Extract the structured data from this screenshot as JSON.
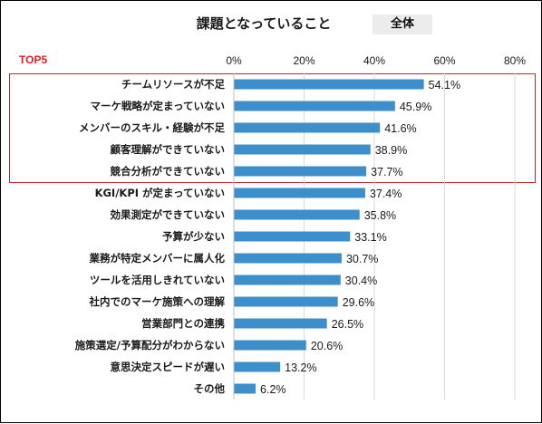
{
  "header": {
    "title": "課題となっていること",
    "badge": "全体",
    "top_label": "TOP5"
  },
  "colors": {
    "bar": "#3d8fcc",
    "grid": "#d9d9d9",
    "highlight_border": "#c0282d",
    "top_label": "#e11d1d"
  },
  "chart_data": {
    "type": "bar",
    "orientation": "horizontal",
    "title": "課題となっていること",
    "xlim": [
      0,
      80
    ],
    "x_ticks": [
      "0%",
      "20%",
      "40%",
      "60%",
      "80%"
    ],
    "x_tick_values": [
      0,
      20,
      40,
      60,
      80
    ],
    "grid": true,
    "highlight_top_n": 5,
    "categories": [
      "チームリソースが不足",
      "マーケ戦略が定まっていない",
      "メンバーのスキル・経験が不足",
      "顧客理解ができていない",
      "競合分析ができていない",
      "KGI/KPI が定まっていない",
      "効果測定ができていない",
      "予算が少ない",
      "業務が特定メンバーに属人化",
      "ツールを活用しきれていない",
      "社内でのマーケ施策への理解",
      "営業部門との連携",
      "施策選定/予算配分がわからない",
      "意思決定スピードが遅い",
      "その他"
    ],
    "values": [
      54.1,
      45.9,
      41.6,
      38.9,
      37.7,
      37.4,
      35.8,
      33.1,
      30.7,
      30.4,
      29.6,
      26.5,
      20.6,
      13.2,
      6.2
    ],
    "value_labels": [
      "54.1%",
      "45.9%",
      "41.6%",
      "38.9%",
      "37.7%",
      "37.4%",
      "35.8%",
      "33.1%",
      "30.7%",
      "30.4%",
      "29.6%",
      "26.5%",
      "20.6%",
      "13.2%",
      "6.2%"
    ]
  }
}
